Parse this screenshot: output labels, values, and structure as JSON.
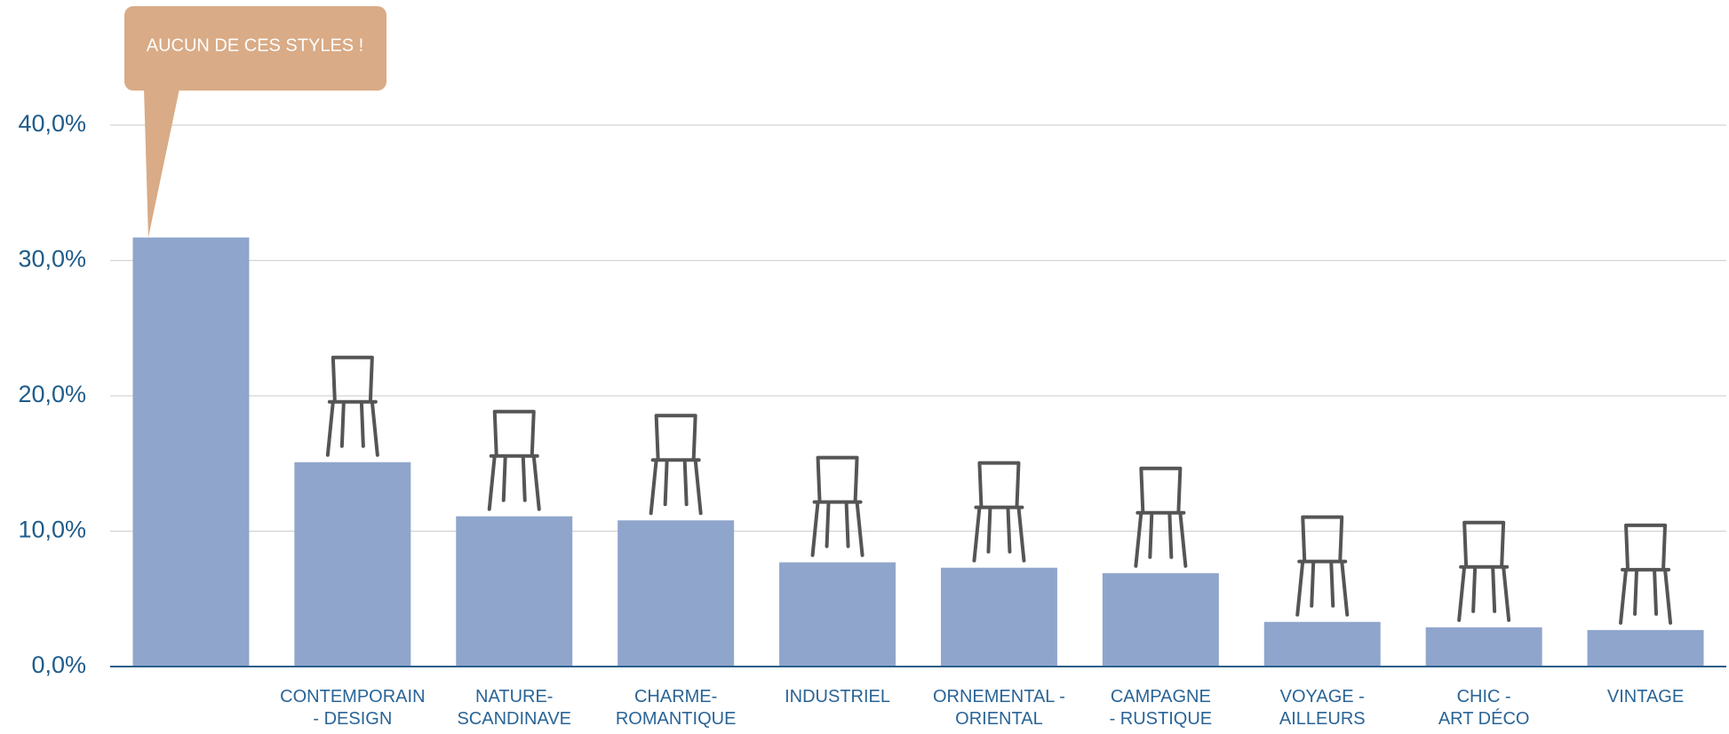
{
  "chart_data": {
    "type": "bar",
    "categories": [
      null,
      "CONTEMPORAIN\n- DESIGN",
      "NATURE-\nSCANDINAVE",
      "CHARME-\nROMANTIQUE",
      "INDUSTRIEL",
      "ORNEMENTAL -\nORIENTAL",
      "CAMPAGNE\n- RUSTIQUE",
      "VOYAGE -\nAILLEURS",
      "CHIC -\nART DÉCO",
      "VINTAGE"
    ],
    "values": [
      31.7,
      15.1,
      11.1,
      10.8,
      7.7,
      7.3,
      6.9,
      3.3,
      2.9,
      2.7
    ],
    "color": "#8fa5cc",
    "ylim": [
      0,
      40
    ],
    "yticks": [
      {
        "value": 0,
        "label": "0,0%"
      },
      {
        "value": 10,
        "label": "10,0%"
      },
      {
        "value": 20,
        "label": "20,0%"
      },
      {
        "value": 30,
        "label": "30,0%"
      },
      {
        "value": 40,
        "label": "40,0%"
      }
    ],
    "grid": true,
    "annotation": "AUCUN DE CES STYLES !"
  }
}
